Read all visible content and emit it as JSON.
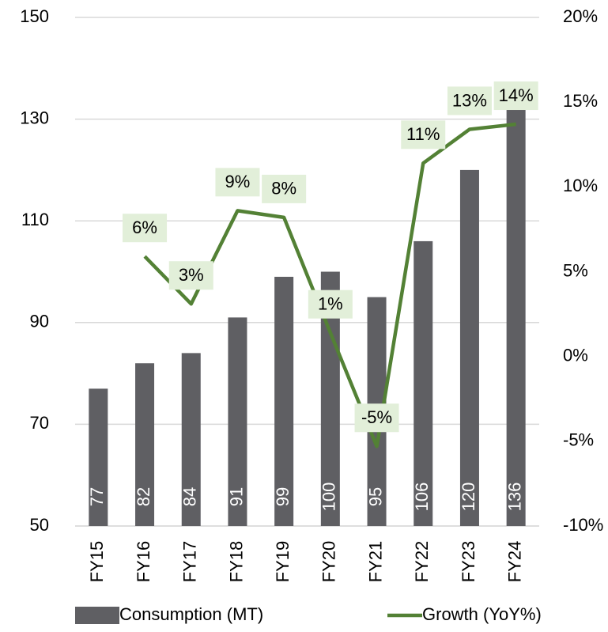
{
  "chart_data": {
    "type": "bar",
    "categories": [
      "FY15",
      "FY16",
      "FY17",
      "FY18",
      "FY19",
      "FY20",
      "FY21",
      "FY22",
      "FY23",
      "FY24"
    ],
    "series": [
      {
        "name": "Consumption (MT)",
        "type": "bar",
        "color": "#5f5f63",
        "values": [
          77,
          82,
          84,
          91,
          99,
          100,
          95,
          106,
          120,
          136
        ]
      },
      {
        "name": "Growth (YoY%)",
        "type": "line",
        "axis": "y2",
        "color": "#538135",
        "values": [
          null,
          5.9,
          3.1,
          8.6,
          8.2,
          1.4,
          -5.3,
          11.4,
          13.4,
          13.7
        ],
        "value_labels": [
          null,
          "6%",
          "3%",
          "9%",
          "8%",
          "1%",
          "-5%",
          "11%",
          "13%",
          "14%"
        ]
      }
    ],
    "ylim": [
      50,
      150
    ],
    "yticks": [
      50,
      70,
      90,
      110,
      130,
      150
    ],
    "y2lim": [
      -10,
      20
    ],
    "y2ticks": [
      {
        "value": -10,
        "label": "-10%"
      },
      {
        "value": -5,
        "label": "-5%"
      },
      {
        "value": 0,
        "label": "0%"
      },
      {
        "value": 5,
        "label": "5%"
      },
      {
        "value": 10,
        "label": "10%"
      },
      {
        "value": 15,
        "label": "15%"
      },
      {
        "value": 20,
        "label": "20%"
      }
    ],
    "grid": true,
    "legend": "bottom"
  }
}
